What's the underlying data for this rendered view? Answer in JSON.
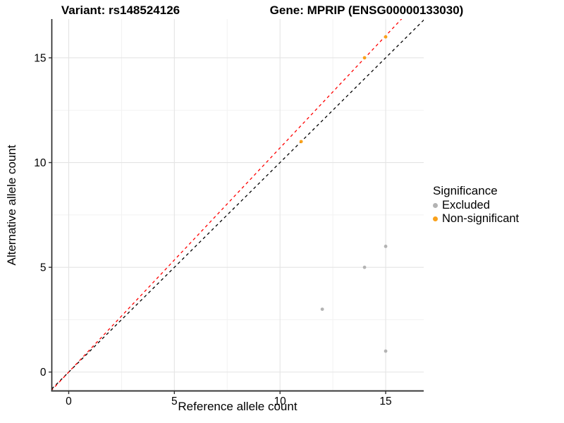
{
  "titles": {
    "variant": "Variant: rs148524126",
    "gene": "Gene: MPRIP (ENSG00000133030)"
  },
  "chart_data": {
    "type": "scatter",
    "xlabel": "Reference allele count",
    "ylabel": "Alternative allele count",
    "xlim": [
      -0.8,
      16.8
    ],
    "ylim": [
      -0.9,
      16.85
    ],
    "x_ticks": [
      0,
      5,
      10,
      15
    ],
    "y_ticks": [
      0,
      5,
      10,
      15
    ],
    "x_minor_ticks": [
      2.5,
      7.5,
      12.5
    ],
    "y_minor_ticks": [
      2.5,
      7.5,
      12.5
    ],
    "grid": true,
    "series": [
      {
        "name": "Excluded",
        "color": "#B3B3B3",
        "points": [
          {
            "x": 12,
            "y": 3
          },
          {
            "x": 14,
            "y": 5
          },
          {
            "x": 15,
            "y": 6
          },
          {
            "x": 15,
            "y": 1
          }
        ]
      },
      {
        "name": "Non-significant",
        "color": "#F9A11B",
        "points": [
          {
            "x": 11,
            "y": 11
          },
          {
            "x": 14,
            "y": 15
          },
          {
            "x": 15,
            "y": 16
          }
        ]
      }
    ],
    "reference_lines": [
      {
        "name": "identity-line",
        "slope": 1.0,
        "intercept": 0,
        "color": "#000000",
        "style": "dashed"
      },
      {
        "name": "fitted-line",
        "slope": 1.07,
        "intercept": 0,
        "color": "#FF0000",
        "style": "dashed"
      }
    ],
    "legend": {
      "title": "Significance",
      "position": "right",
      "items": [
        {
          "label": "Excluded",
          "color": "#B3B3B3"
        },
        {
          "label": "Non-significant",
          "color": "#F9A11B"
        }
      ]
    }
  },
  "colors": {
    "grid_major": "#E4E4E4",
    "grid_minor": "#F1F1F1",
    "axis_line": "#3A3A3A",
    "tick_text": "#000000"
  }
}
